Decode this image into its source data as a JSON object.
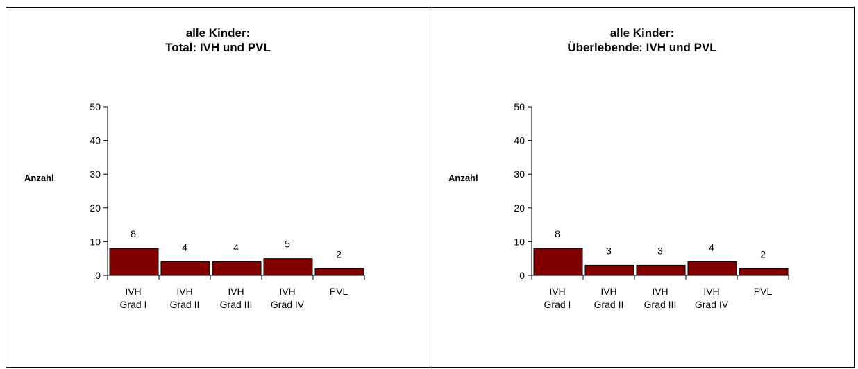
{
  "chart_data": [
    {
      "type": "bar",
      "title": [
        "alle Kinder:",
        "Total: IVH und PVL"
      ],
      "xlabel": "",
      "ylabel": "Anzahl",
      "ylim": [
        0,
        50
      ],
      "yticks": [
        0,
        10,
        20,
        30,
        40,
        50
      ],
      "grid": false,
      "categories": [
        [
          "IVH",
          "Grad I"
        ],
        [
          "IVH",
          "Grad II"
        ],
        [
          "IVH",
          "Grad III"
        ],
        [
          "IVH",
          "Grad IV"
        ],
        [
          "PVL"
        ]
      ],
      "values": [
        8,
        4,
        4,
        5,
        2
      ],
      "data_labels": [
        "8",
        "4",
        "4",
        "5",
        "2"
      ],
      "bar_color": "#800000"
    },
    {
      "type": "bar",
      "title": [
        "alle Kinder:",
        "Überlebende: IVH und PVL"
      ],
      "xlabel": "",
      "ylabel": "Anzahl",
      "ylim": [
        0,
        50
      ],
      "yticks": [
        0,
        10,
        20,
        30,
        40,
        50
      ],
      "grid": false,
      "categories": [
        [
          "IVH",
          "Grad I"
        ],
        [
          "IVH",
          "Grad II"
        ],
        [
          "IVH",
          "Grad III"
        ],
        [
          "IVH",
          "Grad IV"
        ],
        [
          "PVL"
        ]
      ],
      "values": [
        8,
        3,
        3,
        4,
        2
      ],
      "data_labels": [
        "8",
        "3",
        "3",
        "4",
        "2"
      ],
      "bar_color": "#800000"
    }
  ]
}
